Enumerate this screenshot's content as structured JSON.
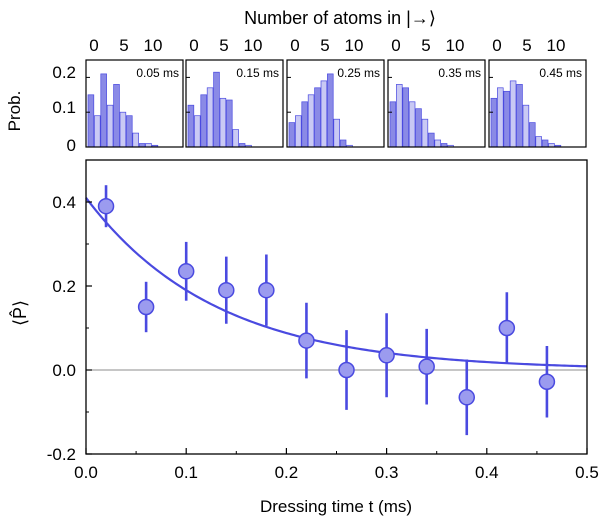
{
  "figure": {
    "top_title": "Number of atoms in |→⟩",
    "colors": {
      "axis": "#000000",
      "accent": "#4a4ae0",
      "marker_fill": "#9b9bef",
      "bar_dark": "#8a8ae6",
      "bar_light": "#c9c9f4",
      "zero_line": "#8c8c8c"
    }
  },
  "chart_data": [
    {
      "type": "bar",
      "title": "0.05 ms",
      "x_ticks": [
        "0",
        "5",
        "10"
      ],
      "y_ticks": [
        "0.2",
        "0.1",
        "0"
      ],
      "ylabel": "Prob.",
      "ylim": [
        0,
        0.25
      ],
      "categories": [
        0,
        1,
        2,
        3,
        4,
        5,
        6,
        7,
        8,
        9,
        10,
        11,
        12,
        13
      ],
      "values": [
        0.15,
        0.09,
        0.21,
        0.12,
        0.18,
        0.1,
        0.09,
        0.04,
        0.01,
        0.01,
        0.005,
        0,
        0,
        0
      ]
    },
    {
      "type": "bar",
      "title": "0.15 ms",
      "x_ticks": [
        "0",
        "5",
        "10"
      ],
      "categories": [
        0,
        1,
        2,
        3,
        4,
        5,
        6,
        7,
        8,
        9,
        10,
        11,
        12,
        13
      ],
      "values": [
        0.12,
        0.09,
        0.15,
        0.17,
        0.215,
        0.14,
        0.135,
        0.05,
        0.01,
        0.005,
        0,
        0,
        0,
        0
      ]
    },
    {
      "type": "bar",
      "title": "0.25 ms",
      "x_ticks": [
        "0",
        "5",
        "10"
      ],
      "categories": [
        0,
        1,
        2,
        3,
        4,
        5,
        6,
        7,
        8,
        9,
        10,
        11,
        12,
        13
      ],
      "values": [
        0.07,
        0.09,
        0.13,
        0.15,
        0.17,
        0.19,
        0.21,
        0.08,
        0.02,
        0.005,
        0,
        0,
        0,
        0
      ]
    },
    {
      "type": "bar",
      "title": "0.35 ms",
      "x_ticks": [
        "0",
        "5",
        "10"
      ],
      "categories": [
        0,
        1,
        2,
        3,
        4,
        5,
        6,
        7,
        8,
        9,
        10,
        11,
        12,
        13
      ],
      "values": [
        0.13,
        0.18,
        0.17,
        0.13,
        0.11,
        0.08,
        0.04,
        0.02,
        0.01,
        0.005,
        0,
        0,
        0,
        0
      ]
    },
    {
      "type": "bar",
      "title": "0.45 ms",
      "x_ticks": [
        "0",
        "5",
        "10"
      ],
      "categories": [
        0,
        1,
        2,
        3,
        4,
        5,
        6,
        7,
        8,
        9,
        10,
        11,
        12,
        13
      ],
      "values": [
        0.14,
        0.17,
        0.16,
        0.19,
        0.18,
        0.12,
        0.07,
        0.03,
        0.02,
        0.01,
        0.005,
        0,
        0,
        0
      ]
    },
    {
      "type": "scatter",
      "xlabel": "Dressing time t (ms)",
      "ylabel": "⟨P̂⟩",
      "xlim": [
        0.0,
        0.5
      ],
      "ylim": [
        -0.2,
        0.5
      ],
      "x_ticks": [
        "0.0",
        "0.1",
        "0.2",
        "0.3",
        "0.4",
        "0.5"
      ],
      "y_ticks": [
        "0.4",
        "0.2",
        "0.0",
        "-0.2"
      ],
      "series": [
        {
          "x": [
            0.02,
            0.06,
            0.1,
            0.14,
            0.18,
            0.22,
            0.26,
            0.3,
            0.34,
            0.38,
            0.42,
            0.46
          ],
          "y": [
            0.39,
            0.15,
            0.235,
            0.19,
            0.19,
            0.07,
            0.0,
            0.035,
            0.008,
            -0.065,
            0.1,
            -0.028
          ],
          "err": [
            0.05,
            0.06,
            0.07,
            0.08,
            0.085,
            0.09,
            0.095,
            0.1,
            0.09,
            0.09,
            0.085,
            0.085
          ]
        }
      ],
      "fit": {
        "type": "exponential",
        "amplitude": 0.41,
        "tau_ms": 0.13
      }
    }
  ]
}
